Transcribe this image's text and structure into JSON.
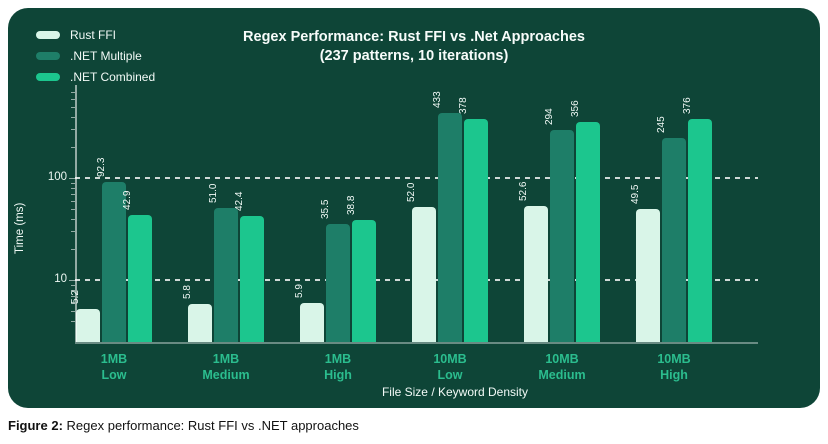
{
  "chart_data": {
    "type": "bar",
    "title": "Regex Performance: Rust FFI vs .Net Approaches",
    "subtitle": "(237 patterns, 10 iterations)",
    "xlabel": "File Size / Keyword Density",
    "ylabel": "Time (ms)",
    "yscale": "log",
    "ylim": [
      2.5,
      800
    ],
    "yticks": [
      10,
      100
    ],
    "minor_ticks": [
      4,
      5,
      6,
      7,
      8,
      9,
      20,
      30,
      40,
      50,
      60,
      70,
      80,
      90,
      200,
      300,
      400,
      500,
      600,
      700
    ],
    "grid": "horizontal dashed at major ticks",
    "legend_position": "top-left",
    "categories": [
      {
        "size": "1MB",
        "density": "Low"
      },
      {
        "size": "1MB",
        "density": "Medium"
      },
      {
        "size": "1MB",
        "density": "High"
      },
      {
        "size": "10MB",
        "density": "Low"
      },
      {
        "size": "10MB",
        "density": "Medium"
      },
      {
        "size": "10MB",
        "density": "High"
      }
    ],
    "series": [
      {
        "name": "Rust FFI",
        "color": "#d9f5e8",
        "values": [
          5.2,
          5.8,
          5.9,
          52.0,
          52.6,
          49.5
        ],
        "labels": [
          "5.2",
          "5.8",
          "5.9",
          "52.0",
          "52.6",
          "49.5"
        ]
      },
      {
        "name": ".NET Multiple",
        "color": "#1e7e68",
        "values": [
          92.3,
          51.0,
          35.5,
          433,
          294,
          245
        ],
        "labels": [
          "92.3",
          "51.0",
          "35.5",
          "433",
          "294",
          "245"
        ]
      },
      {
        "name": ".NET Combined",
        "color": "#1cc68e",
        "values": [
          42.9,
          42.4,
          38.8,
          378,
          356,
          376
        ],
        "labels": [
          "42.9",
          "42.4",
          "38.8",
          "378",
          "356",
          "376"
        ]
      }
    ]
  },
  "colors": {
    "panel_bg": "#0e4537",
    "category_label": "#2bbd8e",
    "text": "#f2faf7"
  },
  "caption": {
    "prefix": "Figure 2:",
    "text": " Regex performance: Rust FFI vs .NET approaches"
  }
}
